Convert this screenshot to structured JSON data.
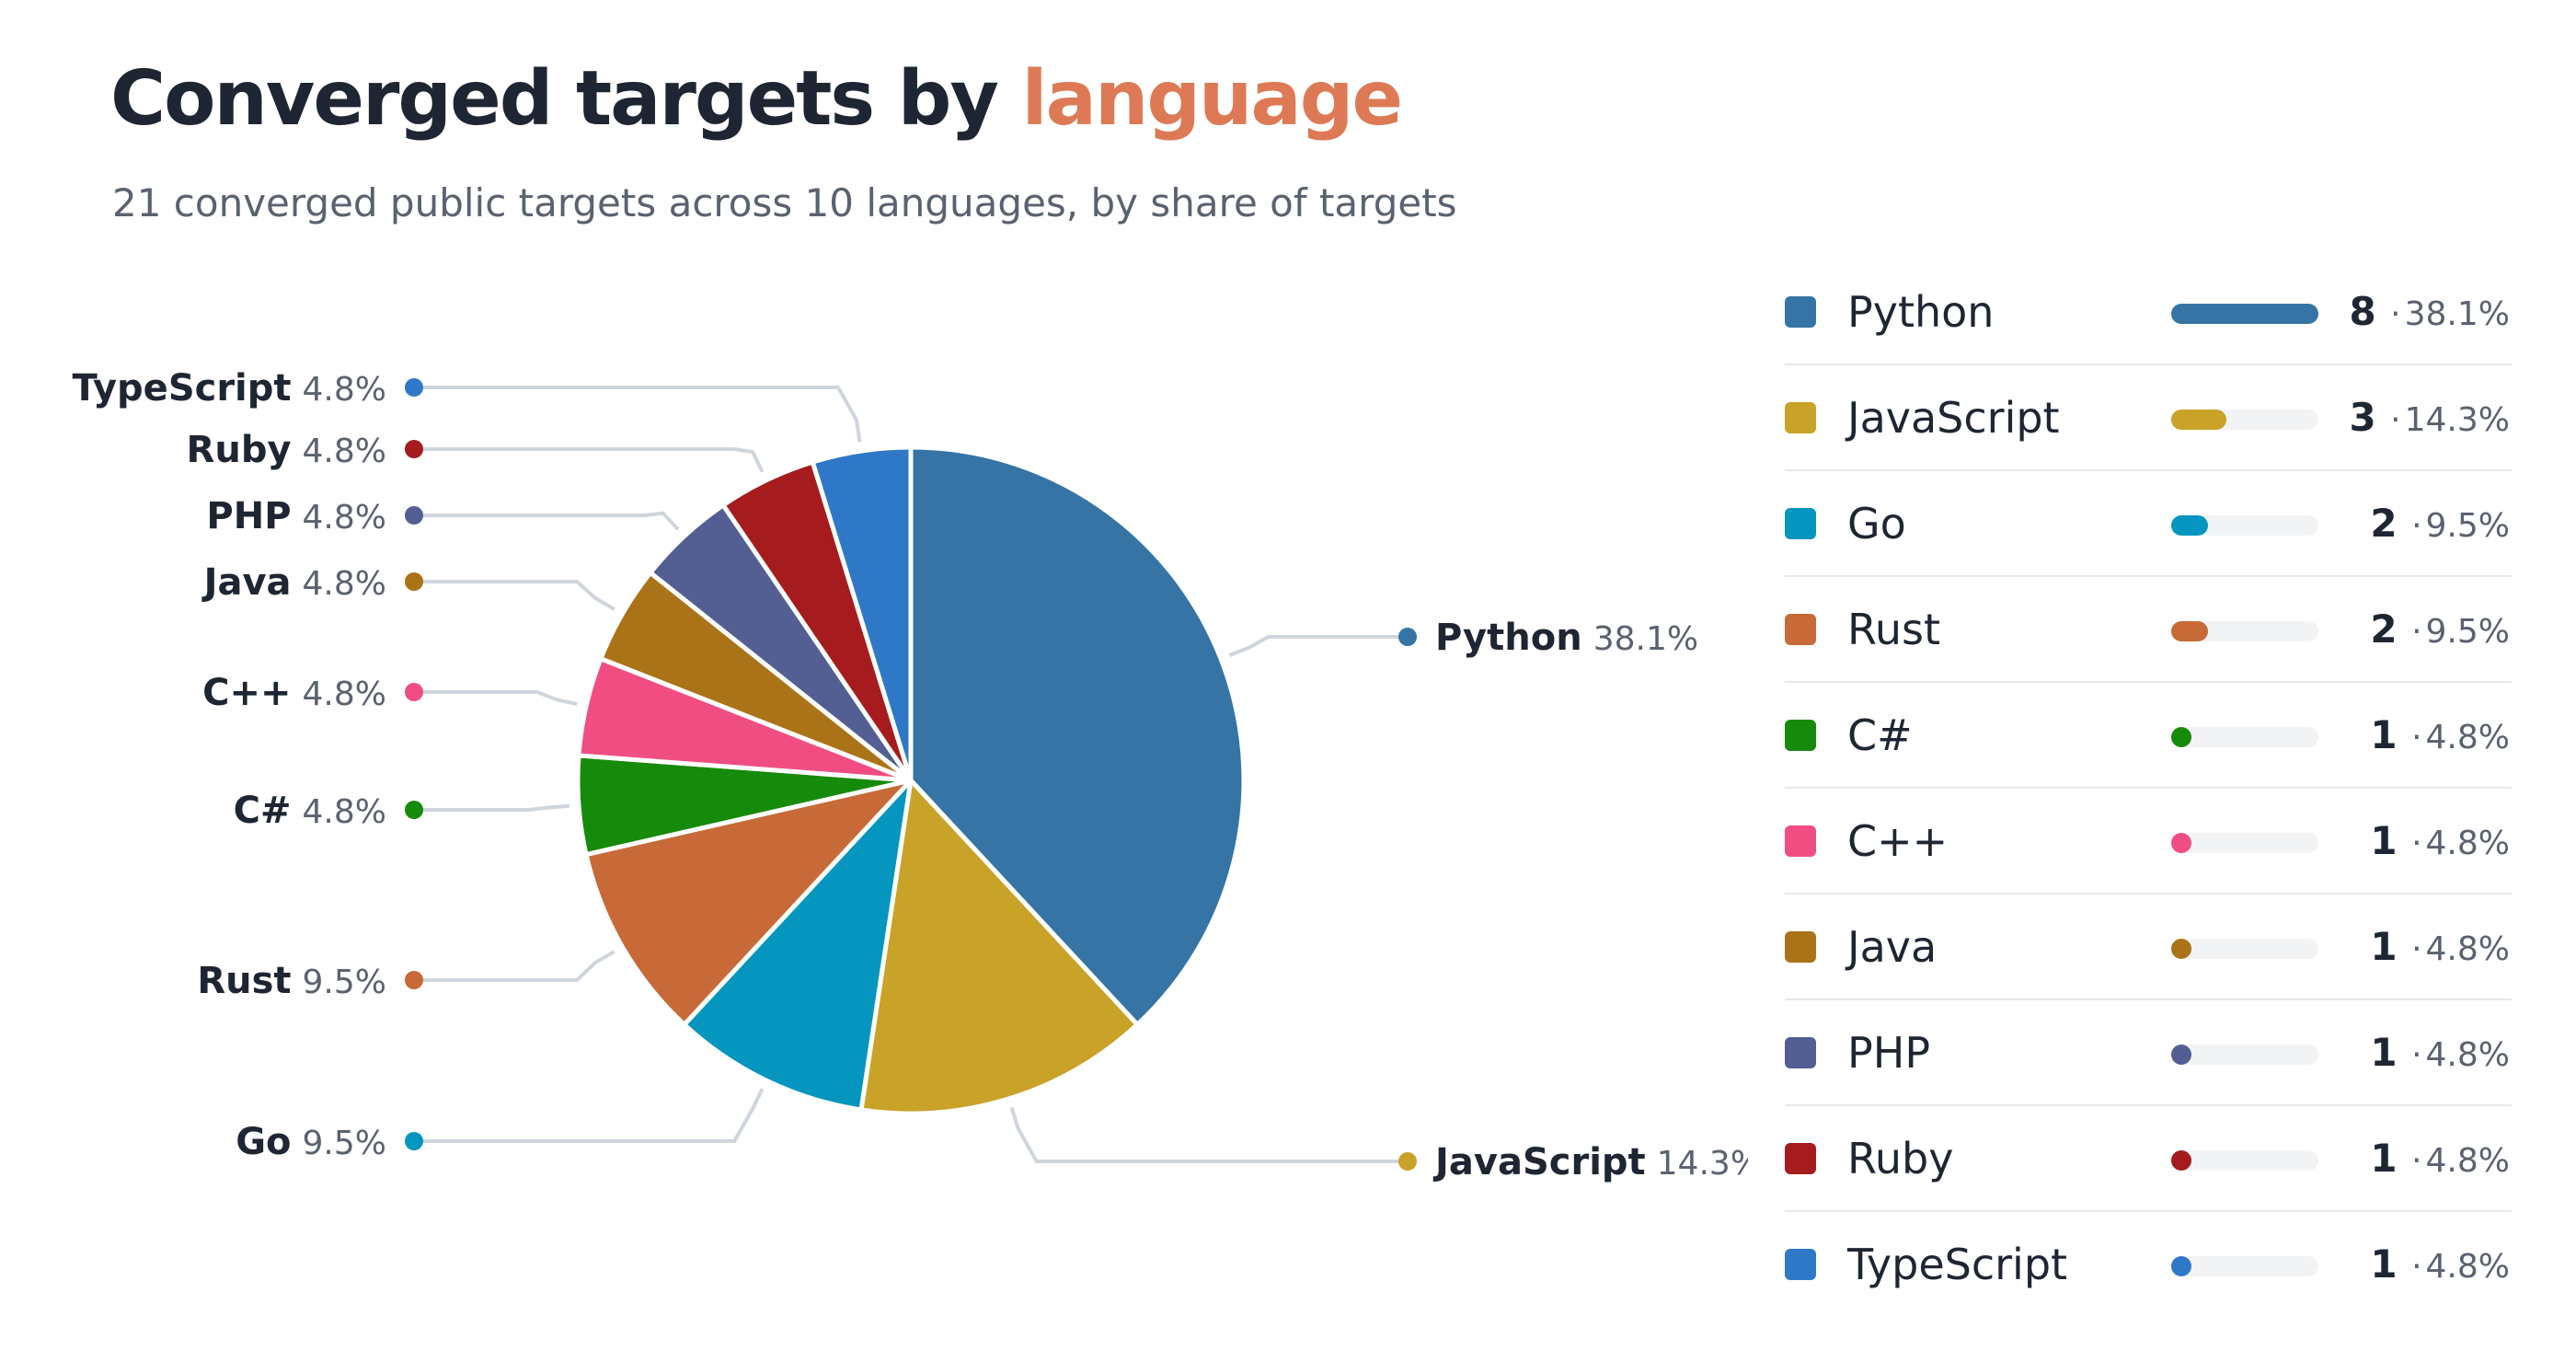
{
  "header": {
    "title_main": "Converged targets by",
    "title_accent": "language",
    "subtitle": "21 converged public targets across 10 languages, by share of targets"
  },
  "colors": {
    "accent": "#dd7a55",
    "leader_line": "#cfd5dd",
    "slice_stroke": "#ffffff"
  },
  "chart_data": {
    "type": "pie",
    "title": "Converged targets by language",
    "total": 21,
    "categories": [
      "Python",
      "JavaScript",
      "Go",
      "Rust",
      "C#",
      "C++",
      "Java",
      "PHP",
      "Ruby",
      "TypeScript"
    ],
    "values": [
      8,
      3,
      2,
      2,
      1,
      1,
      1,
      1,
      1,
      1
    ],
    "percent_labels": [
      "38.1%",
      "14.3%",
      "9.5%",
      "9.5%",
      "4.8%",
      "4.8%",
      "4.8%",
      "4.8%",
      "4.8%",
      "4.8%"
    ],
    "colors": [
      "#3574a5",
      "#c9a228",
      "#0596bf",
      "#c76a38",
      "#168a0a",
      "#f04e82",
      "#ab7318",
      "#535e93",
      "#a61b1e",
      "#2f78c7"
    ],
    "legend_placement": "right"
  },
  "legend": {
    "separator": "·"
  }
}
